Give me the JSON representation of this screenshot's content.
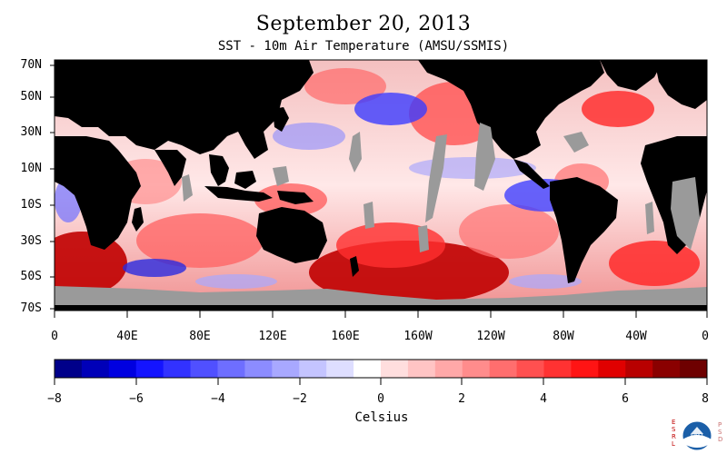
{
  "header": {
    "title": "September 20, 2013",
    "subtitle": "SST - 10m Air Temperature (AMSU/SSMIS)"
  },
  "map": {
    "lat_labels": [
      "70N",
      "50N",
      "30N",
      "10N",
      "10S",
      "30S",
      "50S",
      "70S"
    ],
    "lon_labels": [
      "0",
      "40E",
      "80E",
      "120E",
      "160E",
      "160W",
      "120W",
      "80W",
      "40W",
      "0"
    ],
    "colors": {
      "land": "#000000",
      "ice_nodata": "#9a9a9a"
    }
  },
  "colorbar": {
    "tick_labels": [
      "−8",
      "−6",
      "−4",
      "−2",
      "0",
      "2",
      "4",
      "6",
      "8"
    ],
    "unit_label": "Celsius",
    "min": -8,
    "max": 8,
    "colors": [
      "#00008a",
      "#0000b8",
      "#0000e0",
      "#1414ff",
      "#3232ff",
      "#5050ff",
      "#6e6eff",
      "#8c8cff",
      "#a8a8ff",
      "#c4c4ff",
      "#dedeff",
      "#ffffff",
      "#ffdede",
      "#ffc4c4",
      "#ffa8a8",
      "#ff8c8c",
      "#ff6e6e",
      "#ff5050",
      "#ff3232",
      "#ff1414",
      "#e00000",
      "#b80000",
      "#8a0000",
      "#6e0000"
    ]
  },
  "logo": {
    "left_text": "ESRL",
    "right_text": "PSD",
    "center_text": "NOAA",
    "colors": {
      "left": "#c00000",
      "right": "#c87070",
      "emblem": "#1b5fa8"
    }
  }
}
